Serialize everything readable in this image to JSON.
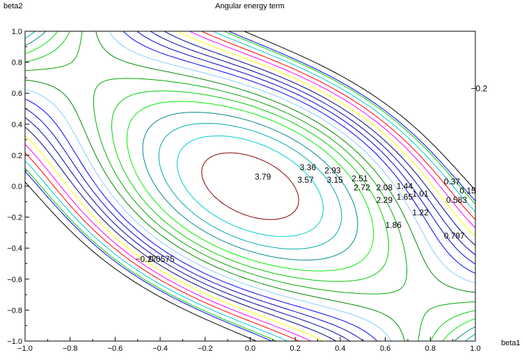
{
  "chart_data": {
    "type": "contour",
    "title": "Angular energy term",
    "xlabel": "beta1",
    "ylabel": "beta2",
    "xlim": [
      -1.0,
      1.0
    ],
    "ylim": [
      -1.0,
      1.0
    ],
    "xticks": [
      "−1.0",
      "−0.8",
      "−0.6",
      "−0.4",
      "−0.2",
      "0.0",
      "0.2",
      "0.4",
      "0.6",
      "0.8",
      "1.0"
    ],
    "yticks": [
      "−1.0",
      "−0.8",
      "−0.6",
      "−0.4",
      "−0.2",
      "0.0",
      "0.2",
      "0.4",
      "0.6",
      "0.8",
      "1.0"
    ],
    "grid": false,
    "levels": [
      {
        "value": -0.27,
        "label": "−0.27",
        "color": "#000000"
      },
      {
        "value": 0.0575,
        "label": "0.0575",
        "color": "#0000ff"
      },
      {
        "value": 0.15,
        "label": "0.15",
        "color": "#00cc00"
      },
      {
        "value": 0.37,
        "label": "0.37",
        "color": "#00cccc"
      },
      {
        "value": 0.583,
        "label": "0.583",
        "color": "#ff0000"
      },
      {
        "value": 0.797,
        "label": "0.797",
        "color": "#ff00ff"
      },
      {
        "value": 1.01,
        "label": "1.01",
        "color": "#ffff00"
      },
      {
        "value": 1.22,
        "label": "1.22",
        "color": "#000080"
      },
      {
        "value": 1.44,
        "label": "1.44",
        "color": "#0000aa"
      },
      {
        "value": 1.65,
        "label": "1.65",
        "color": "#0000cc"
      },
      {
        "value": 1.86,
        "label": "1.86",
        "color": "#0000ff"
      },
      {
        "value": 2.08,
        "label": "2.08",
        "color": "#87ceff"
      },
      {
        "value": 2.29,
        "label": "2.29",
        "color": "#008800"
      },
      {
        "value": 2.51,
        "label": "2.51",
        "color": "#00aa00"
      },
      {
        "value": 2.72,
        "label": "2.72",
        "color": "#00cc00"
      },
      {
        "value": 2.93,
        "label": "2.93",
        "color": "#00ee00"
      },
      {
        "value": 3.15,
        "label": "3.15",
        "color": "#008888"
      },
      {
        "value": 3.36,
        "label": "3.36",
        "color": "#00aaaa"
      },
      {
        "value": 3.57,
        "label": "3.57",
        "color": "#00cccc"
      },
      {
        "value": 3.79,
        "label": "3.79",
        "color": "#880000"
      }
    ],
    "contour_labels": [
      {
        "text": "3.79",
        "x": 0.02,
        "y": 0.06
      },
      {
        "text": "3.36",
        "x": 0.22,
        "y": 0.12
      },
      {
        "text": "2.93",
        "x": 0.33,
        "y": 0.1
      },
      {
        "text": "2.51",
        "x": 0.45,
        "y": 0.05
      },
      {
        "text": "3.57",
        "x": 0.21,
        "y": 0.04
      },
      {
        "text": "3.15",
        "x": 0.34,
        "y": 0.04
      },
      {
        "text": "2.72",
        "x": 0.46,
        "y": -0.01
      },
      {
        "text": "2.08",
        "x": 0.56,
        "y": -0.01
      },
      {
        "text": "1.44",
        "x": 0.65,
        "y": 0.0
      },
      {
        "text": "2.29",
        "x": 0.56,
        "y": -0.09
      },
      {
        "text": "1.65",
        "x": 0.65,
        "y": -0.07
      },
      {
        "text": "1.01",
        "x": 0.72,
        "y": -0.05
      },
      {
        "text": "0.37",
        "x": 0.86,
        "y": 0.03
      },
      {
        "text": "0.15",
        "x": 0.93,
        "y": -0.03
      },
      {
        "text": "0.583",
        "x": 0.87,
        "y": -0.09
      },
      {
        "text": "1.22",
        "x": 0.72,
        "y": -0.17
      },
      {
        "text": "1.86",
        "x": 0.6,
        "y": -0.25
      },
      {
        "text": "0.797",
        "x": 0.86,
        "y": -0.32
      },
      {
        "text": "−0.27",
        "x": -0.51,
        "y": -0.47
      },
      {
        "text": "0.0575",
        "x": -0.45,
        "y": -0.47
      },
      {
        "text": "−0.2",
        "x": 0.98,
        "y": 0.63
      }
    ]
  }
}
